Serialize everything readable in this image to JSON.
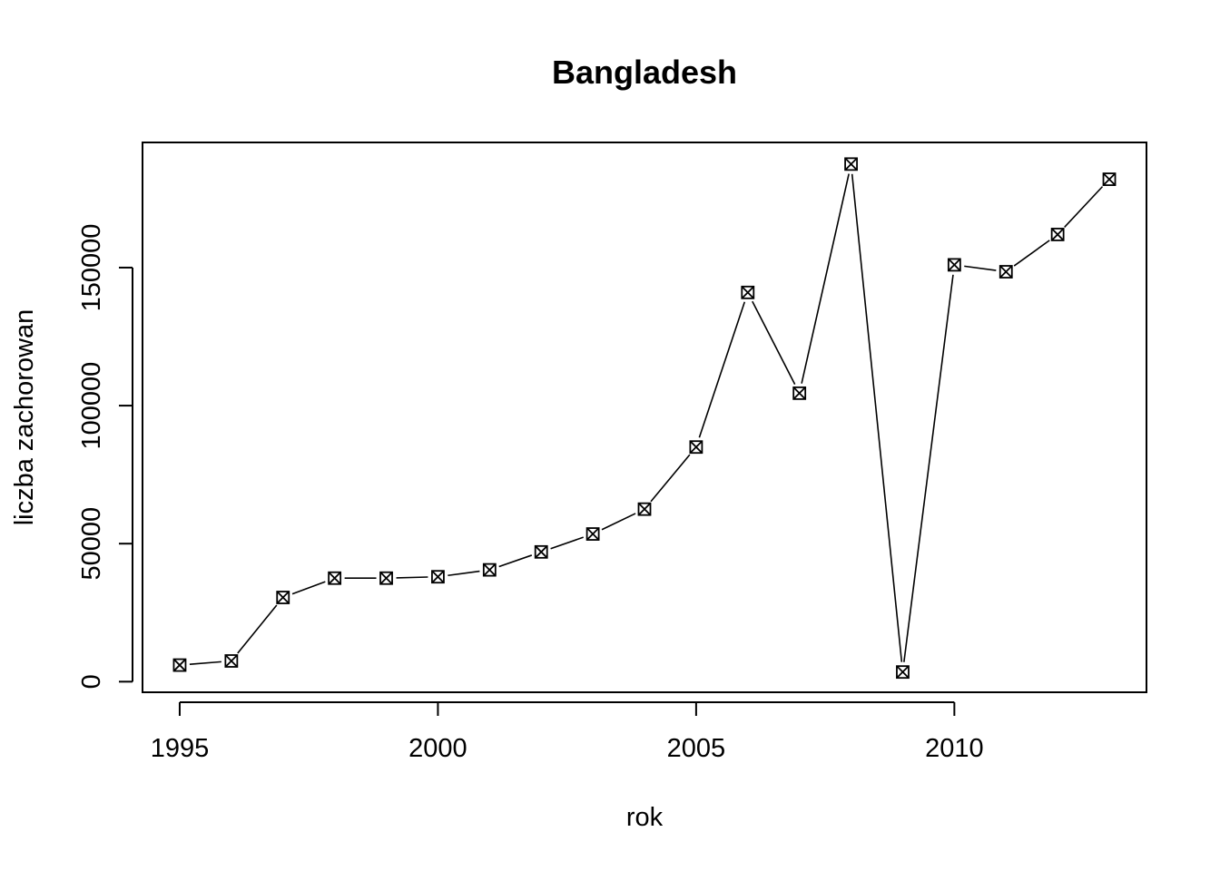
{
  "chart_data": {
    "type": "line",
    "title": "Bangladesh",
    "xlabel": "rok",
    "ylabel": "liczba zachorowan",
    "x": [
      1995,
      1996,
      1997,
      1998,
      1999,
      2000,
      2001,
      2002,
      2003,
      2004,
      2005,
      2006,
      2007,
      2008,
      2009,
      2010,
      2011,
      2012,
      2013
    ],
    "series": [
      {
        "values": [
          6000,
          7500,
          30500,
          37500,
          37500,
          38000,
          40500,
          47000,
          53500,
          62500,
          85000,
          141000,
          104500,
          187500,
          3500,
          151000,
          148500,
          162000,
          182000
        ]
      }
    ],
    "xticks": [
      1995,
      2000,
      2005,
      2010
    ],
    "xtick_labels": [
      "1995",
      "2000",
      "2005",
      "2010"
    ],
    "yticks": [
      0,
      50000,
      100000,
      150000
    ],
    "ytick_labels": [
      "0",
      "50000",
      "100000",
      "150000"
    ],
    "xlim": [
      1994.28,
      2013.72
    ],
    "ylim": [
      -3840,
      195340
    ],
    "marker": "boxed-x",
    "grid": false,
    "line_color": "#000000"
  }
}
